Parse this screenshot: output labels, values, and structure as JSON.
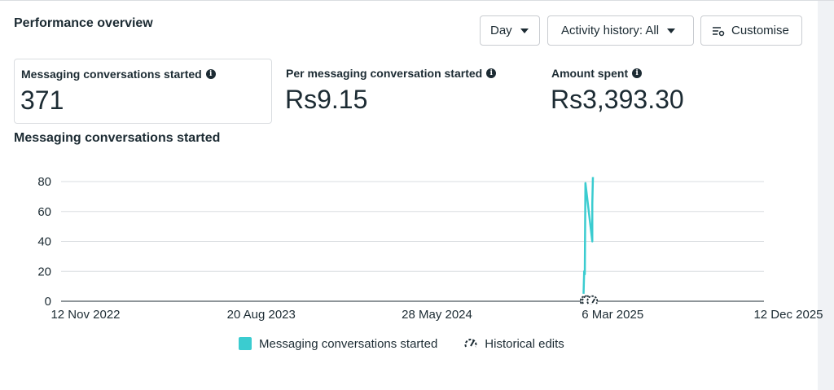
{
  "header": {
    "title": "Performance overview",
    "day_label": "Day",
    "activity_label": "Activity history: All",
    "customise_label": "Customise"
  },
  "metrics": [
    {
      "label": "Messaging conversations started",
      "value": "371"
    },
    {
      "label": "Per messaging conversation started",
      "value": "Rs9.15"
    },
    {
      "label": "Amount spent",
      "value": "Rs3,393.30"
    }
  ],
  "chart_title": "Messaging conversations started",
  "legend": {
    "series_label": "Messaging conversations started",
    "edits_label": "Historical edits"
  },
  "colors": {
    "series": "#3bccd0",
    "grid": "#dadde1",
    "text": "#1c2b33"
  },
  "chart_data": {
    "type": "line",
    "title": "Messaging conversations started",
    "xlabel": "",
    "ylabel": "",
    "ylim": [
      0,
      80
    ],
    "yticks": [
      0,
      20,
      40,
      60,
      80
    ],
    "xticks": [
      "12 Nov 2022",
      "20 Aug 2023",
      "28 May 2024",
      "6 Mar 2025",
      "12 Dec 2025"
    ],
    "xlim": [
      "2022-11-12",
      "2025-12-12"
    ],
    "series": [
      {
        "name": "Messaging conversations started",
        "points": [
          {
            "x": "2025-02-26",
            "y": 5
          },
          {
            "x": "2025-02-27",
            "y": 20
          },
          {
            "x": "2025-02-28",
            "y": 18
          },
          {
            "x": "2025-03-01",
            "y": 79
          },
          {
            "x": "2025-03-12",
            "y": 40
          },
          {
            "x": "2025-03-12",
            "y": 65
          },
          {
            "x": "2025-03-13",
            "y": 83
          }
        ]
      }
    ],
    "historical_edits": [
      "2025-03-01",
      "2025-03-04",
      "2025-03-12"
    ],
    "grid": true,
    "legend_position": "bottom"
  }
}
